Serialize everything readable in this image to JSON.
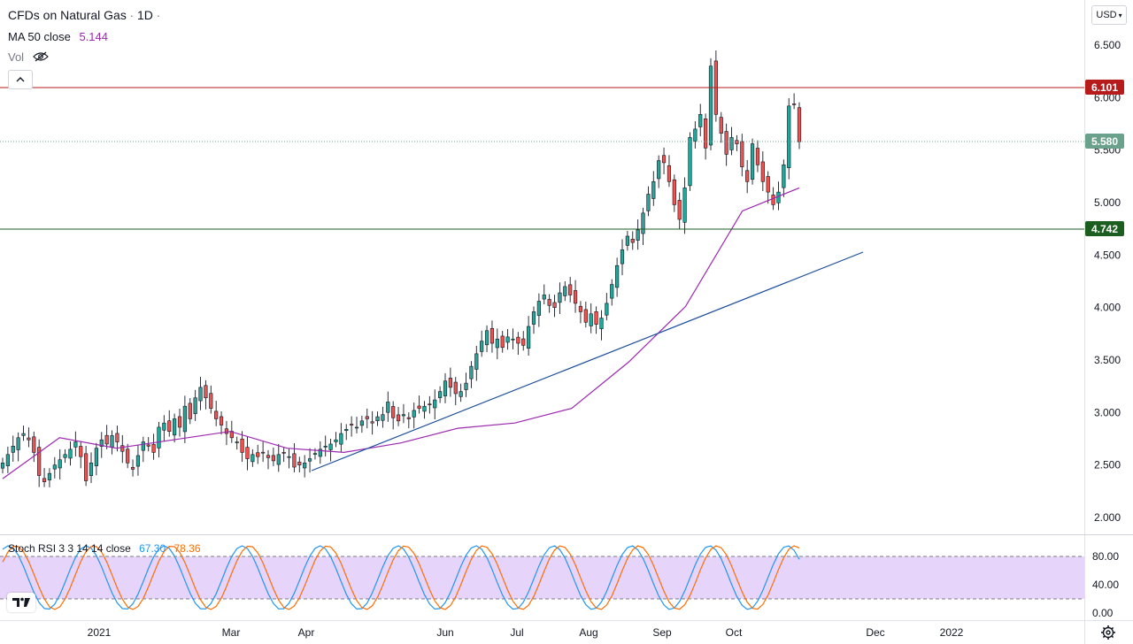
{
  "header": {
    "symbol_title": "CFDs on Natural Gas",
    "interval": "1D",
    "ma_label": "MA 50 close",
    "ma_value": "5.144",
    "vol_label": "Vol"
  },
  "currency": "USD",
  "price_tags": {
    "resistance": "6.101",
    "last": "5.580",
    "support": "4.742"
  },
  "stoch": {
    "label": "Stoch RSI 3 3 14 14 close",
    "k_value": "67.30",
    "d_value": "78.36"
  },
  "colors": {
    "up": "#26a69a",
    "down": "#ef5350",
    "ma": "#9c27b0",
    "trendline": "#1e4f9c",
    "resistance": "#b71c1c",
    "support": "#1b5e20",
    "last": "#6aa18c",
    "k": "#2196f3",
    "d": "#ff6d00",
    "band_fill": "#e7d4fb"
  },
  "chart_data": [
    {
      "type": "candlestick",
      "title": "CFDs on Natural Gas",
      "interval": "1D",
      "x_ticks": [
        "2021",
        "Mar",
        "Apr",
        "Jun",
        "Jul",
        "Aug",
        "Sep",
        "Oct",
        "Dec",
        "2022"
      ],
      "y_ticks": [
        "2.000",
        "2.500",
        "3.000",
        "3.500",
        "4.000",
        "4.500",
        "5.000",
        "5.500",
        "6.000",
        "6.500"
      ],
      "ylim": [
        1.9,
        6.9
      ],
      "close": [
        2.52,
        2.6,
        2.68,
        2.76,
        2.8,
        2.74,
        2.62,
        2.4,
        2.34,
        2.42,
        2.5,
        2.55,
        2.6,
        2.65,
        2.72,
        2.58,
        2.35,
        2.52,
        2.66,
        2.74,
        2.7,
        2.78,
        2.72,
        2.63,
        2.52,
        2.46,
        2.59,
        2.72,
        2.68,
        2.62,
        2.86,
        2.9,
        2.82,
        2.94,
        2.86,
        3.06,
        2.94,
        3.14,
        3.24,
        3.14,
        3.04,
        2.94,
        2.88,
        2.8,
        2.76,
        2.72,
        2.62,
        2.56,
        2.6,
        2.58,
        2.62,
        2.57,
        2.54,
        2.6,
        2.62,
        2.58,
        2.48,
        2.5,
        2.52,
        2.56,
        2.61,
        2.65,
        2.68,
        2.7,
        2.74,
        2.8,
        2.84,
        2.88,
        2.86,
        2.92,
        2.94,
        2.9,
        2.96,
        2.98,
        3.1,
        2.95,
        2.92,
        2.98,
        2.94,
        3.02,
        3.04,
        3.06,
        3.08,
        3.12,
        3.2,
        3.3,
        3.24,
        3.18,
        3.2,
        3.28,
        3.44,
        3.56,
        3.68,
        3.78,
        3.66,
        3.7,
        3.62,
        3.72,
        3.7,
        3.66,
        3.64,
        3.82,
        3.96,
        4.06,
        4.12,
        4.02,
        4.0,
        4.14,
        4.2,
        4.12,
        4.04,
        3.96,
        3.86,
        3.94,
        3.84,
        3.9,
        4.04,
        4.22,
        4.4,
        4.55,
        4.68,
        4.62,
        4.74,
        4.9,
        5.08,
        5.2,
        5.4,
        5.38,
        5.2,
        4.98,
        4.84,
        5.14,
        5.62,
        5.7,
        5.84,
        5.52,
        6.3,
        5.84,
        5.66,
        5.46,
        5.62,
        5.56,
        5.34,
        5.2,
        5.56,
        5.36,
        5.2,
        5.1,
        4.98,
        5.1,
        5.36,
        5.92,
        5.94,
        5.58
      ],
      "open_offsets": [
        0.12,
        -0.08,
        0.06,
        -0.1,
        0.06,
        -0.12,
        0.08,
        0.14,
        -0.08,
        0.05
      ],
      "ma50": [
        2.37,
        2.76,
        2.66,
        2.74,
        2.82,
        2.66,
        2.62,
        2.71,
        2.85,
        2.9,
        3.04,
        3.48,
        4.01,
        4.92,
        5.14
      ],
      "ma50_points": 15
    },
    {
      "type": "line",
      "title": "Stoch RSI 3 3 14 14 close",
      "y_ticks": [
        "0.00",
        "40.00",
        "80.00"
      ],
      "band": [
        20,
        80
      ],
      "k_value": 67.3,
      "d_value": 78.36
    }
  ]
}
